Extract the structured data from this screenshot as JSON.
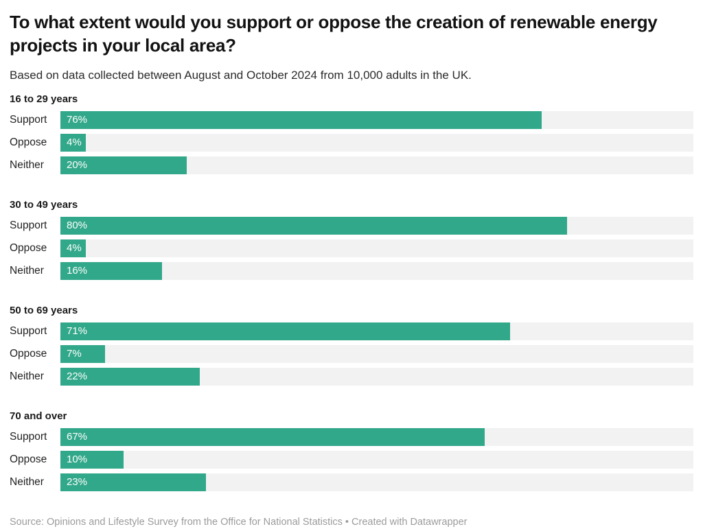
{
  "header": {
    "title": "To what extent would you support or oppose the creation of renewable energy projects in your local area?",
    "subtitle": "Based on data collected between August and October 2024 from 10,000 adults in the UK."
  },
  "footer": {
    "source_line": "Source: Opinions and Lifestyle Survey from the Office for National Statistics • Created with Datawrapper"
  },
  "colors": {
    "bar": "#32a88a",
    "track": "#f2f2f2",
    "value_label": "#ffffff",
    "footer_text": "#9b9b9b",
    "title_text": "#121212"
  },
  "chart_data": {
    "type": "bar",
    "orientation": "horizontal",
    "title": "To what extent would you support or oppose the creation of renewable energy projects in your local area?",
    "subtitle": "Based on data collected between August and October 2024 from 10,000 adults in the UK.",
    "unit": "%",
    "xlim": [
      0,
      100
    ],
    "grid": false,
    "legend": "none",
    "value_label_format": "{value}%",
    "value_label_position": "inside-left",
    "categories": [
      "Support",
      "Oppose",
      "Neither"
    ],
    "groups": [
      {
        "label": "16 to 29 years",
        "values": [
          76,
          4,
          20
        ]
      },
      {
        "label": "30 to 49 years",
        "values": [
          80,
          4,
          16
        ]
      },
      {
        "label": "50 to 69 years",
        "values": [
          71,
          7,
          22
        ]
      },
      {
        "label": "70 and over",
        "values": [
          67,
          10,
          23
        ]
      }
    ]
  }
}
